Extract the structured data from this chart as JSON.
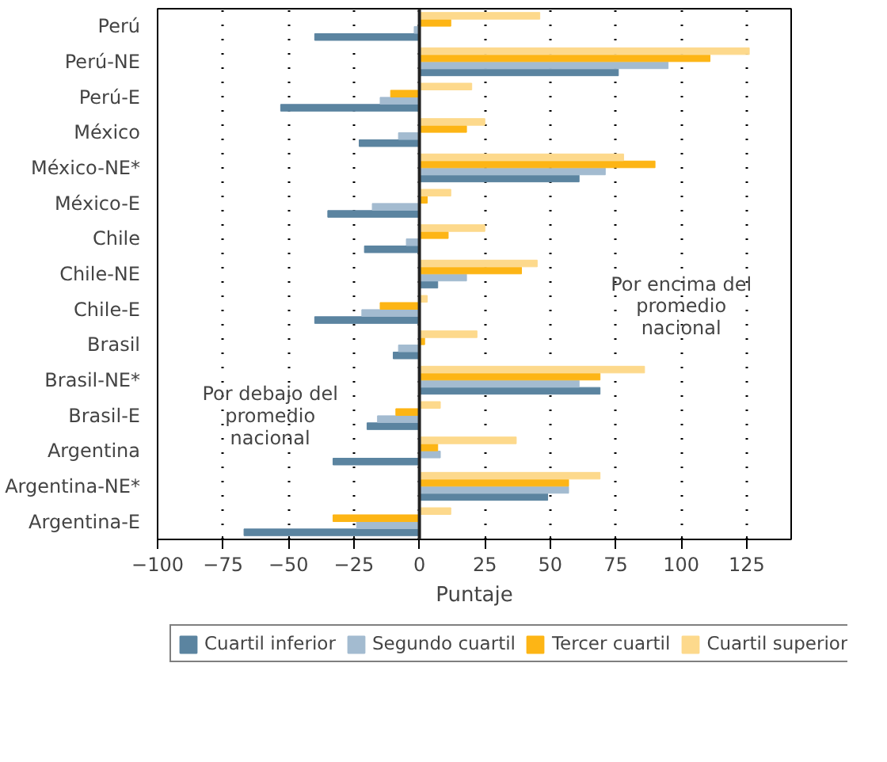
{
  "chart_data": {
    "type": "bar",
    "orientation": "horizontal",
    "xlabel": "Puntaje",
    "categories": [
      "Perú",
      "Perú-NE",
      "Perú-E",
      "México",
      "México-NE*",
      "México-E",
      "Chile",
      "Chile-NE",
      "Chile-E",
      "Brasil",
      "Brasil-NE*",
      "Brasil-E",
      "Argentina",
      "Argentina-NE*",
      "Argentina-E"
    ],
    "series": [
      {
        "name": "Cuartil inferior",
        "color": "#5b84a0",
        "values": [
          -40,
          76,
          -53,
          -23,
          61,
          -35,
          -21,
          7,
          -40,
          -10,
          69,
          -20,
          -33,
          49,
          -67
        ]
      },
      {
        "name": "Segundo cuartil",
        "color": "#a3bbd0",
        "values": [
          -2,
          95,
          -15,
          -8,
          71,
          -18,
          -5,
          18,
          -22,
          -8,
          61,
          -16,
          8,
          57,
          -24
        ]
      },
      {
        "name": "Tercer cuartil",
        "color": "#fdb515",
        "values": [
          12,
          111,
          -11,
          18,
          90,
          3,
          11,
          39,
          -15,
          2,
          69,
          -9,
          7,
          57,
          -33
        ]
      },
      {
        "name": "Cuartil superior",
        "color": "#fdd98c",
        "values": [
          46,
          126,
          20,
          25,
          78,
          12,
          25,
          45,
          3,
          22,
          86,
          8,
          37,
          69,
          12
        ]
      }
    ],
    "xlim": [
      -100,
      142
    ],
    "xticks": [
      -100,
      -75,
      -50,
      -25,
      0,
      25,
      50,
      75,
      100,
      125
    ],
    "grid": "x",
    "legend": "bottom",
    "annotations": [
      "Por encima del promedio nacional",
      "Por debajo del promedio nacional"
    ]
  }
}
